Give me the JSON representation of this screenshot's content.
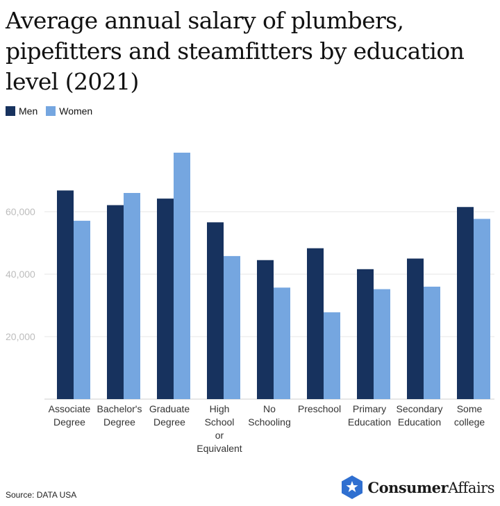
{
  "title": "Average annual salary of plumbers, pipefitters and steamfitters by education level (2021)",
  "source": "Source: DATA USA",
  "brand": {
    "name_bold": "Consumer",
    "name_regular": "Affairs",
    "logo_icon": "star-hexagon-icon"
  },
  "colors": {
    "men": "#17325e",
    "women": "#75a6e0",
    "grid": "#e6e6e6",
    "axis": "#cccccc",
    "tick_text": "#bdbdbd"
  },
  "chart_data": {
    "type": "bar",
    "title": "Average annual salary of plumbers, pipefitters and steamfitters by education level (2021)",
    "xlabel": "",
    "ylabel": "",
    "categories": [
      [
        "Associate",
        "Degree"
      ],
      [
        "Bachelor's",
        "Degree"
      ],
      [
        "Graduate",
        "Degree"
      ],
      [
        "High",
        "School",
        "or",
        "Equivalent"
      ],
      [
        "No",
        "Schooling"
      ],
      [
        "Preschool"
      ],
      [
        "Primary",
        "Education"
      ],
      [
        "Secondary",
        "Education"
      ],
      [
        "Some",
        "college"
      ]
    ],
    "series": [
      {
        "name": "Men",
        "values": [
          66800,
          62100,
          64200,
          56600,
          44500,
          48300,
          41600,
          45000,
          61500
        ]
      },
      {
        "name": "Women",
        "values": [
          57100,
          66000,
          78900,
          45800,
          35700,
          27800,
          35200,
          36000,
          57700
        ]
      }
    ],
    "yticks": [
      20000,
      40000,
      60000
    ],
    "ytick_labels": [
      "20,000",
      "40,000",
      "60,000"
    ],
    "ylim": [
      0,
      80000
    ],
    "grid": true,
    "legend": "top-left"
  }
}
